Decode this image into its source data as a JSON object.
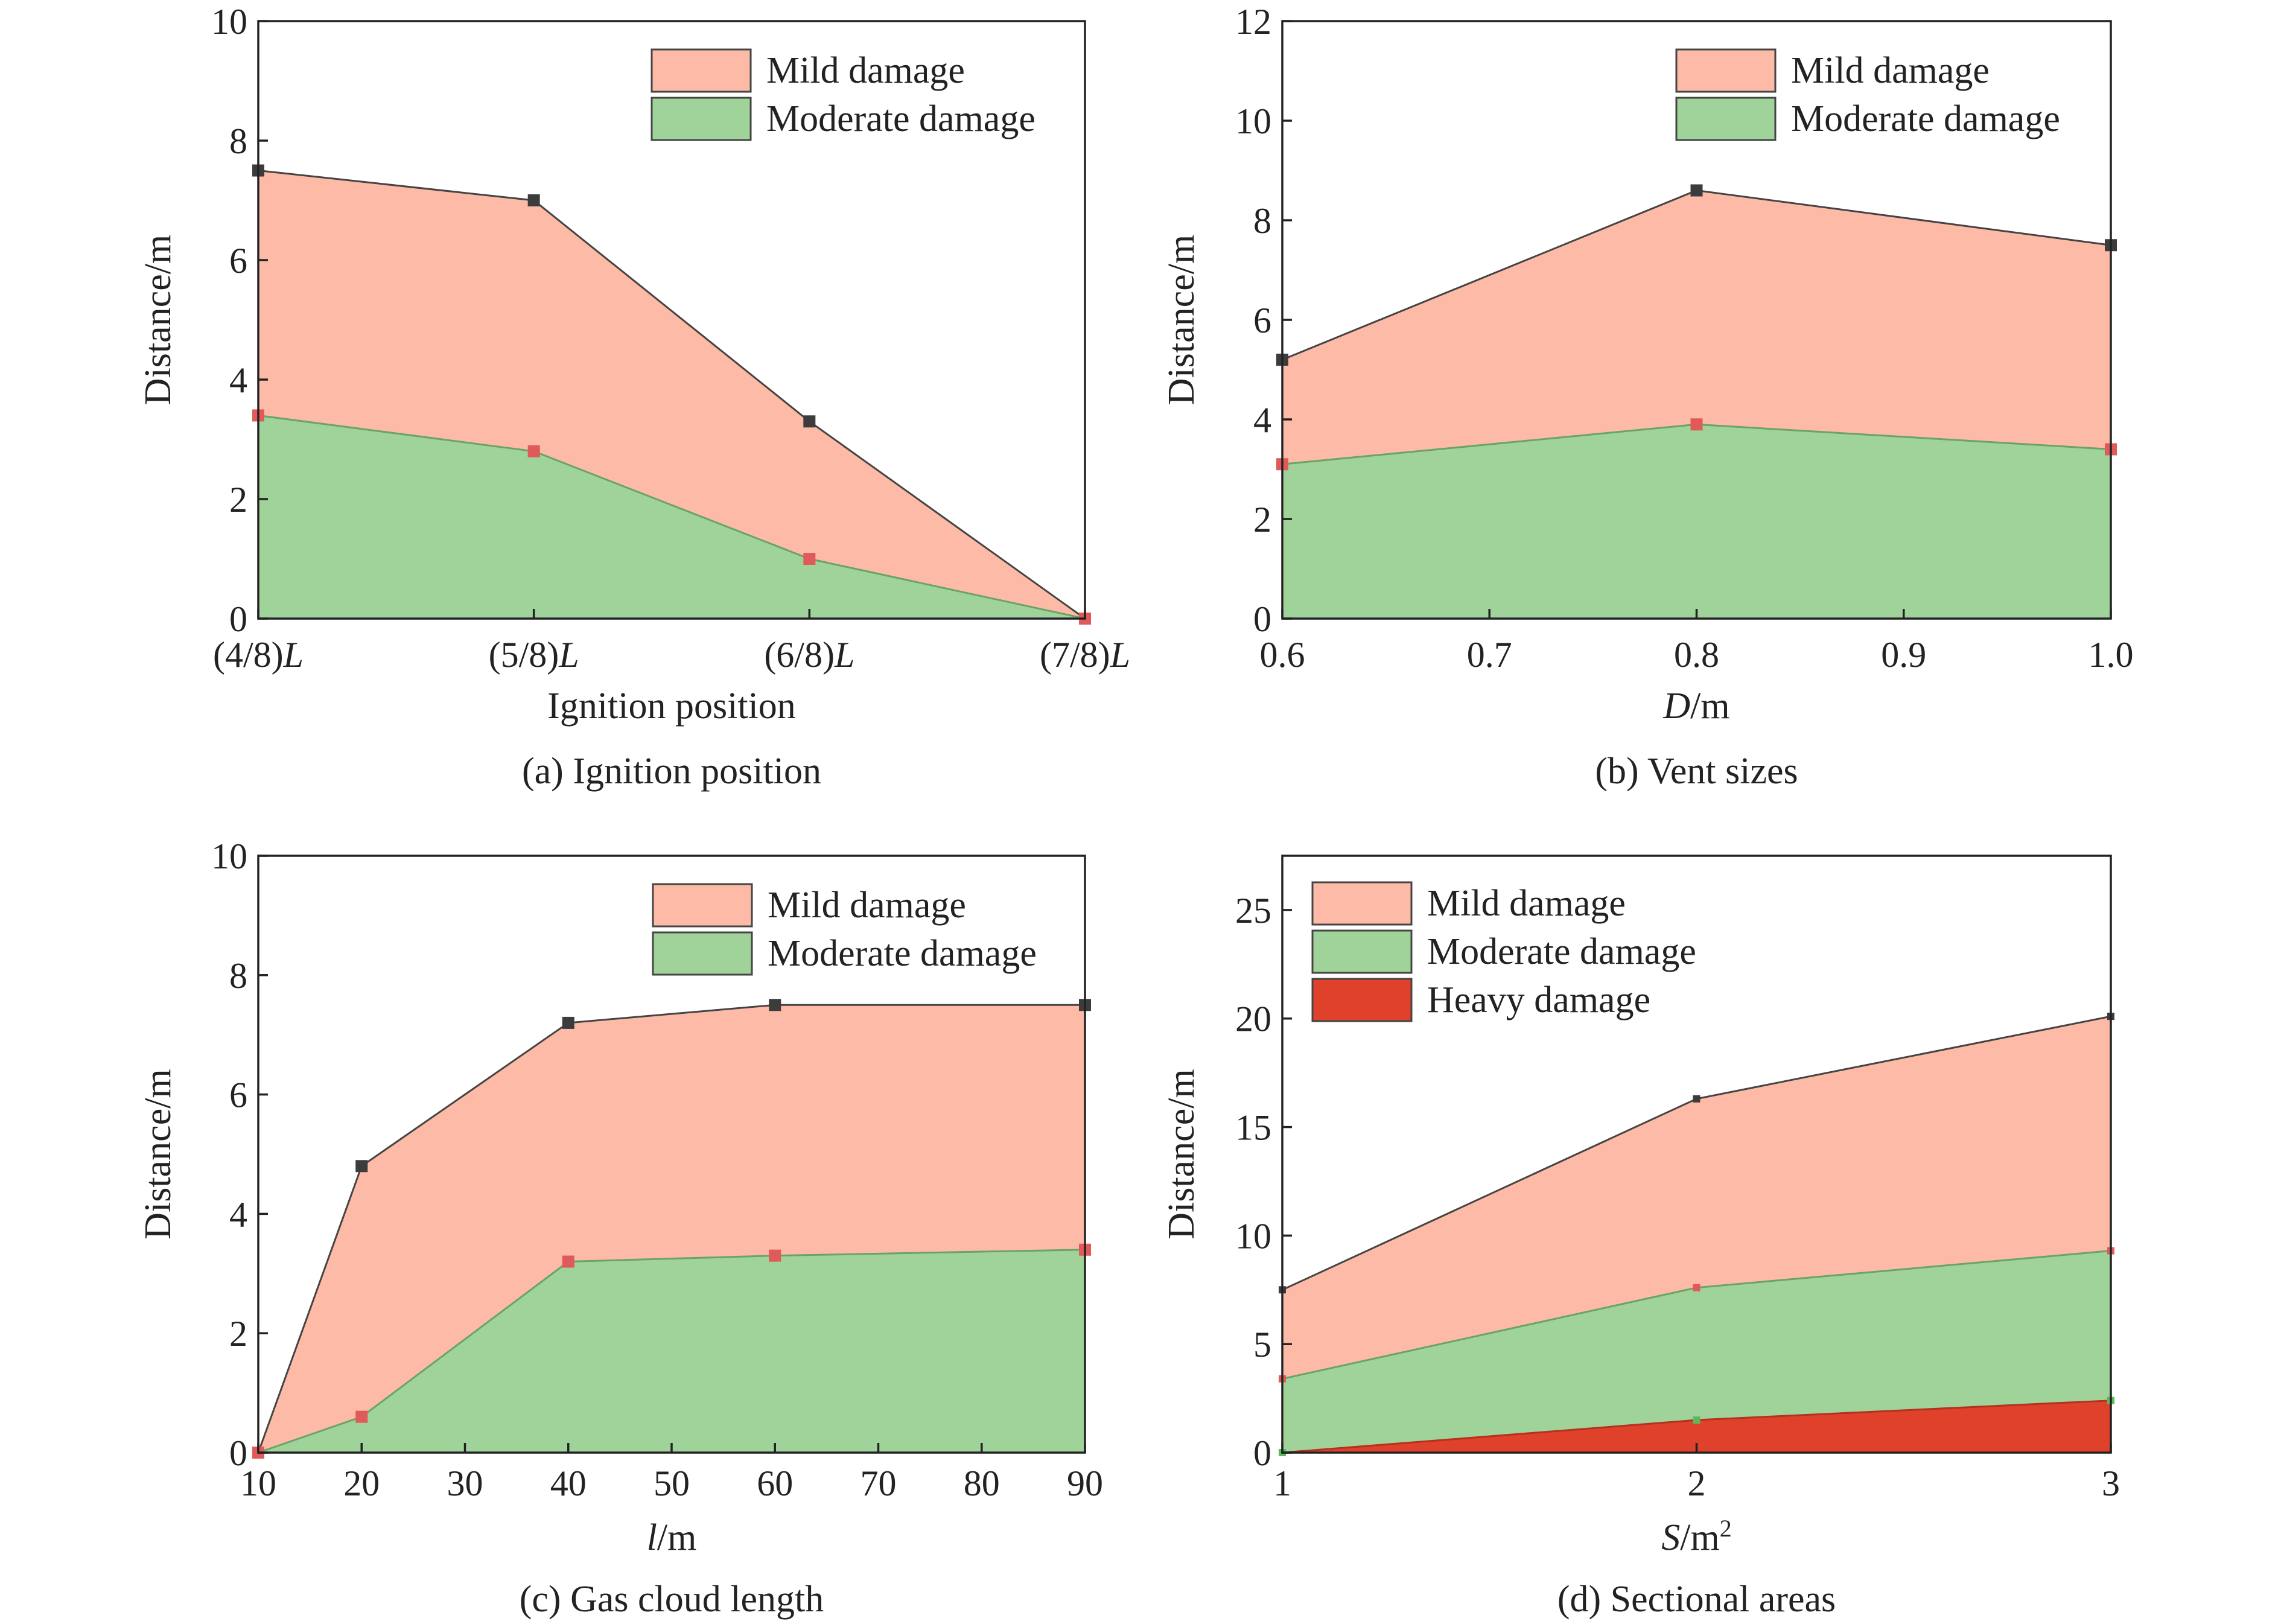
{
  "colors": {
    "mild": "#fdbaa6",
    "moderate": "#9fd399",
    "heavy": "#e0412a",
    "outer_line": "#444444",
    "mild_marker": "#3c3c3c",
    "moderate_marker": "#e05a5a",
    "heavy_marker": "#5cb85c"
  },
  "chart_data": [
    {
      "id": "a",
      "type": "area",
      "caption": "(a) Ignition position",
      "xlabel": "Ignition position",
      "xlabel_italic": "",
      "xlabel_rest": "",
      "ylabel": "Distance/m",
      "x_scale": "categorical",
      "categories": [
        "(4/8)L",
        "(5/8)L",
        "(6/8)L",
        "(7/8)L"
      ],
      "x_ticks": [
        {
          "pre": "(4/8)",
          "ital": "L"
        },
        {
          "pre": "(5/8)",
          "ital": "L"
        },
        {
          "pre": "(6/8)",
          "ital": "L"
        },
        {
          "pre": "(7/8)",
          "ital": "L"
        }
      ],
      "ylim": [
        0,
        10
      ],
      "y_ticks": [
        "0",
        "2",
        "4",
        "6",
        "8",
        "10"
      ],
      "legend_position": "top-right",
      "series": [
        {
          "name": "Mild damage",
          "key": "mild",
          "values": [
            7.5,
            7.0,
            3.3,
            0
          ]
        },
        {
          "name": "Moderate damage",
          "key": "moderate",
          "values": [
            3.4,
            2.8,
            1.0,
            0
          ]
        }
      ]
    },
    {
      "id": "b",
      "type": "area",
      "caption": "(b) Vent sizes",
      "xlabel": "",
      "xlabel_italic": "D",
      "xlabel_rest": "/m",
      "ylabel": "Distance/m",
      "x_scale": "linear",
      "xlim": [
        0.6,
        1.0
      ],
      "x": [
        0.6,
        0.8,
        1.0
      ],
      "x_tick_values": [
        0.6,
        0.7,
        0.8,
        0.9,
        1.0
      ],
      "x_ticks": [
        {
          "pre": "0.6"
        },
        {
          "pre": "0.7"
        },
        {
          "pre": "0.8"
        },
        {
          "pre": "0.9"
        },
        {
          "pre": "1.0"
        }
      ],
      "ylim": [
        0,
        12
      ],
      "y_ticks": [
        "0",
        "2",
        "4",
        "6",
        "8",
        "10",
        "12"
      ],
      "legend_position": "top-right",
      "series": [
        {
          "name": "Mild damage",
          "key": "mild",
          "values": [
            5.2,
            8.6,
            7.5
          ]
        },
        {
          "name": "Moderate damage",
          "key": "moderate",
          "values": [
            3.1,
            3.9,
            3.4
          ]
        }
      ]
    },
    {
      "id": "c",
      "type": "area",
      "caption": "(c) Gas cloud length",
      "xlabel": "",
      "xlabel_italic": "l",
      "xlabel_rest": "/m",
      "ylabel": "Distance/m",
      "x_scale": "linear",
      "xlim": [
        10,
        90
      ],
      "x": [
        10,
        20,
        40,
        60,
        90
      ],
      "x_tick_values": [
        10,
        20,
        30,
        40,
        50,
        60,
        70,
        80,
        90
      ],
      "x_ticks": [
        {
          "pre": "10"
        },
        {
          "pre": "20"
        },
        {
          "pre": "30"
        },
        {
          "pre": "40"
        },
        {
          "pre": "50"
        },
        {
          "pre": "60"
        },
        {
          "pre": "70"
        },
        {
          "pre": "80"
        },
        {
          "pre": "90"
        }
      ],
      "ylim": [
        0,
        10
      ],
      "y_ticks": [
        "0",
        "2",
        "4",
        "6",
        "8",
        "10"
      ],
      "legend_position": "top-right",
      "series": [
        {
          "name": "Mild damage",
          "key": "mild",
          "values": [
            0,
            4.8,
            7.2,
            7.5,
            7.5
          ]
        },
        {
          "name": "Moderate damage",
          "key": "moderate",
          "values": [
            0,
            0.6,
            3.2,
            3.3,
            3.4
          ]
        }
      ]
    },
    {
      "id": "d",
      "type": "area",
      "caption": "(d) Sectional areas",
      "xlabel": "",
      "xlabel_italic": "S",
      "xlabel_rest": "/m",
      "xlabel_sup": "2",
      "ylabel": "Distance/m",
      "x_scale": "linear",
      "xlim": [
        1,
        3
      ],
      "x": [
        1,
        2,
        3
      ],
      "x_tick_values": [
        1,
        2,
        3
      ],
      "x_ticks": [
        {
          "pre": "1"
        },
        {
          "pre": "2"
        },
        {
          "pre": "3"
        }
      ],
      "ylim": [
        0,
        27.5
      ],
      "y_tick_values": [
        0,
        5,
        10,
        15,
        20,
        25
      ],
      "y_ticks": [
        "0",
        "5",
        "10",
        "15",
        "20",
        "25"
      ],
      "legend_position": "top-left",
      "series": [
        {
          "name": "Mild damage",
          "key": "mild",
          "values": [
            7.5,
            16.3,
            20.1
          ]
        },
        {
          "name": "Moderate damage",
          "key": "moderate",
          "values": [
            3.4,
            7.6,
            9.3
          ]
        },
        {
          "name": "Heavy damage",
          "key": "heavy",
          "values": [
            0,
            1.5,
            2.4
          ]
        }
      ]
    }
  ]
}
